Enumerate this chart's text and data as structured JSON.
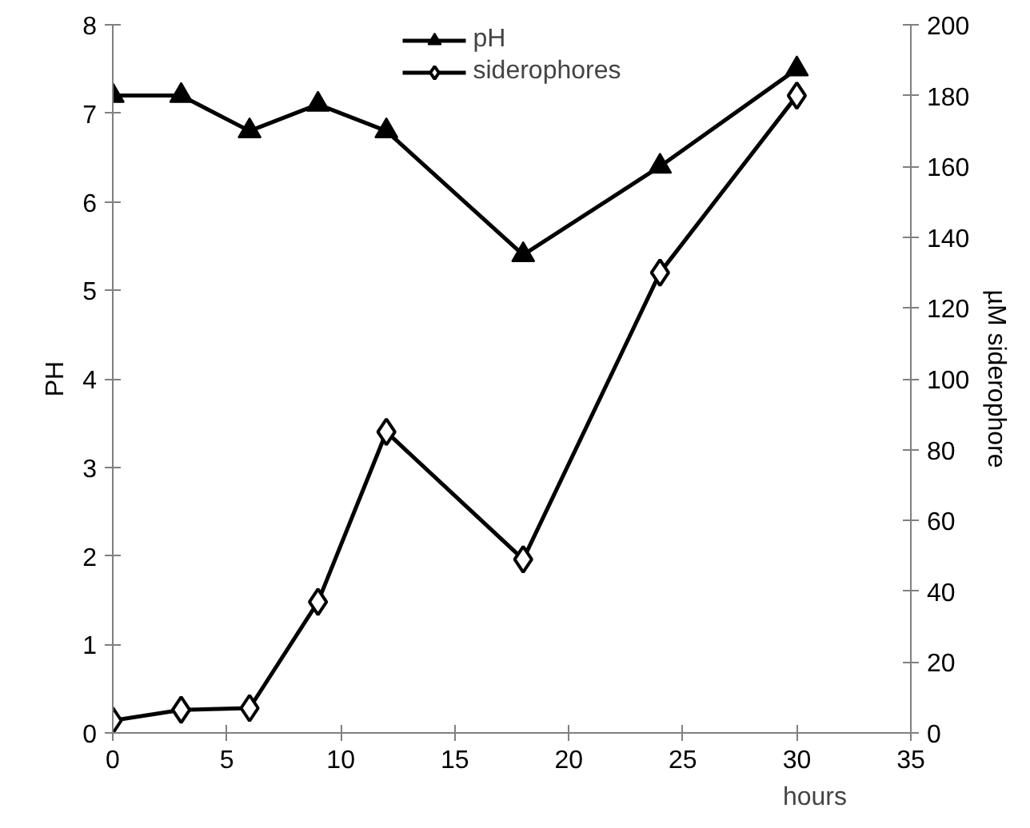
{
  "chart_data": {
    "type": "line",
    "xlabel": "hours",
    "ylabel": "PH",
    "y2label": "µM siderophore",
    "x": [
      0,
      3,
      6,
      9,
      12,
      18,
      24,
      30
    ],
    "series": [
      {
        "name": "pH",
        "color": "#000000",
        "marker": "triangle",
        "values": [
          7.2,
          7.2,
          6.8,
          7.1,
          6.8,
          5.4,
          6.4,
          7.5
        ]
      },
      {
        "name": "siderophores",
        "color": "#000000",
        "marker": "diamond",
        "axis": "y2",
        "values": [
          3.5,
          6.5,
          7,
          37,
          85,
          49,
          130,
          180
        ]
      }
    ],
    "xlim": [
      0,
      35
    ],
    "xticks": [
      0,
      5,
      10,
      15,
      20,
      25,
      30,
      35
    ],
    "ylim": [
      0,
      8
    ],
    "yticks": [
      0,
      1,
      2,
      3,
      4,
      5,
      6,
      7,
      8
    ],
    "y2lim": [
      0,
      200
    ],
    "y2ticks": [
      0,
      20,
      40,
      60,
      80,
      100,
      120,
      140,
      160,
      180,
      200
    ],
    "grid": false,
    "legend": "top",
    "line_style": "solid"
  }
}
